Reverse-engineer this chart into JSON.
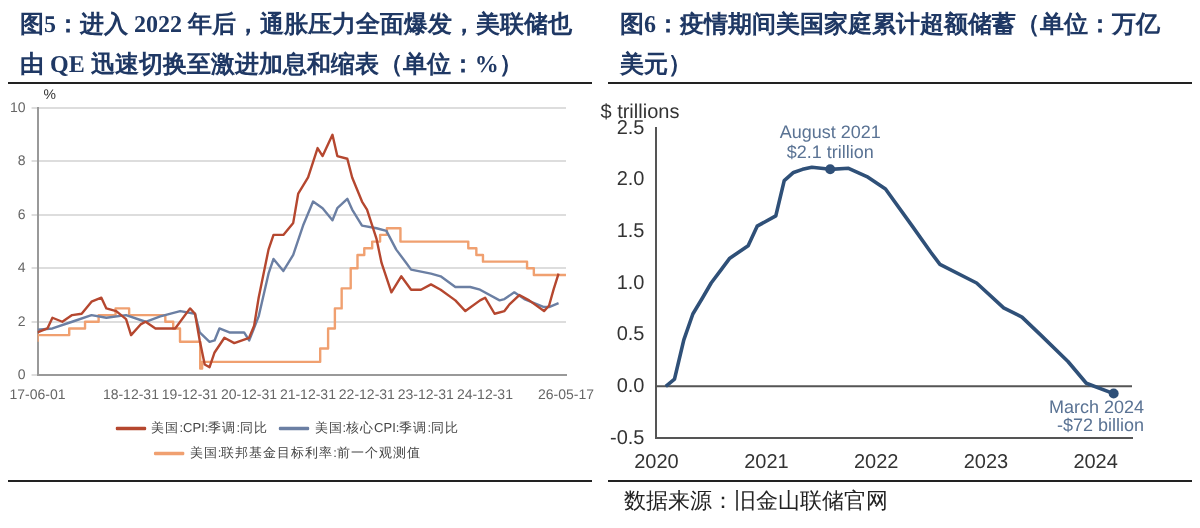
{
  "chart_data": [
    {
      "type": "line",
      "title": "图5：进入 2022 年后，通胀压力全面爆发，美联储也由 QE 迅速切换至激进加息和缩表（单位：%）",
      "ylabel": "%",
      "xlim": [
        "2017-06-01",
        "2026-05-17"
      ],
      "xticks": [
        {
          "value": "2017-06-01",
          "label": "17-06-01"
        },
        {
          "value": "2018-12-31",
          "label": "18-12-31"
        },
        {
          "value": "2019-12-31",
          "label": "19-12-31"
        },
        {
          "value": "2020-12-31",
          "label": "20-12-31"
        },
        {
          "value": "2021-12-31",
          "label": "21-12-31"
        },
        {
          "value": "2022-12-31",
          "label": "22-12-31"
        },
        {
          "value": "2023-12-31",
          "label": "23-12-31"
        },
        {
          "value": "2024-12-31",
          "label": "24-12-31"
        },
        {
          "value": "2026-05-17",
          "label": "26-05-17"
        }
      ],
      "ylim": [
        0,
        10
      ],
      "yticks": [
        0,
        2,
        4,
        6,
        8,
        10
      ],
      "grid": "y",
      "legend": "bottom",
      "marker": "none",
      "line_style": "solid",
      "series": [
        {
          "name": "美国:CPI:季调:同比",
          "color": "#b5472f",
          "x": [
            "2017-06",
            "2017-08",
            "2017-09",
            "2017-11",
            "2018-01",
            "2018-03",
            "2018-05",
            "2018-07",
            "2018-08",
            "2018-10",
            "2018-12",
            "2019-01",
            "2019-03",
            "2019-04",
            "2019-06",
            "2019-08",
            "2019-10",
            "2020-01",
            "2020-02",
            "2020-03",
            "2020-04",
            "2020-05",
            "2020-06",
            "2020-08",
            "2020-10",
            "2021-01",
            "2021-02",
            "2021-03",
            "2021-05",
            "2021-06",
            "2021-08",
            "2021-10",
            "2021-11",
            "2022-01",
            "2022-03",
            "2022-04",
            "2022-06",
            "2022-07",
            "2022-09",
            "2022-10",
            "2022-12",
            "2023-01",
            "2023-03",
            "2023-04",
            "2023-06",
            "2023-08",
            "2023-10",
            "2023-12",
            "2024-02",
            "2024-04",
            "2024-07",
            "2024-09",
            "2024-12",
            "2025-01",
            "2025-03",
            "2025-05",
            "2025-06",
            "2025-08",
            "2025-10",
            "2026-01",
            "2026-02",
            "2026-03",
            "2026-04"
          ],
          "values": [
            1.6,
            1.75,
            2.15,
            2.0,
            2.25,
            2.3,
            2.75,
            2.9,
            2.5,
            2.4,
            2.1,
            1.5,
            1.9,
            2.0,
            1.75,
            1.75,
            1.75,
            2.5,
            2.3,
            1.3,
            0.4,
            0.3,
            0.85,
            1.4,
            1.2,
            1.4,
            1.85,
            2.9,
            4.7,
            5.25,
            5.25,
            5.7,
            6.8,
            7.4,
            8.5,
            8.2,
            9.0,
            8.2,
            8.1,
            7.4,
            6.5,
            6.2,
            5.1,
            4.2,
            3.1,
            3.7,
            3.2,
            3.2,
            3.4,
            3.2,
            2.8,
            2.4,
            2.8,
            2.9,
            2.3,
            2.4,
            2.65,
            3.0,
            2.8,
            2.4,
            2.6,
            3.2,
            3.8
          ]
        },
        {
          "name": "美国:核心CPI:季调:同比",
          "color": "#6b7fa3",
          "x": [
            "2017-06",
            "2017-09",
            "2018-01",
            "2018-05",
            "2018-08",
            "2018-12",
            "2019-04",
            "2019-07",
            "2019-11",
            "2020-02",
            "2020-03",
            "2020-05",
            "2020-06",
            "2020-07",
            "2020-09",
            "2020-12",
            "2021-01",
            "2021-03",
            "2021-05",
            "2021-06",
            "2021-08",
            "2021-10",
            "2021-12",
            "2022-02",
            "2022-04",
            "2022-06",
            "2022-07",
            "2022-09",
            "2022-10",
            "2022-12",
            "2023-03",
            "2023-05",
            "2023-07",
            "2023-09",
            "2023-10",
            "2024-02",
            "2024-04",
            "2024-07",
            "2024-10",
            "2024-12",
            "2025-04",
            "2025-05",
            "2025-07",
            "2025-09",
            "2026-01",
            "2026-02",
            "2026-04"
          ],
          "values": [
            1.7,
            1.75,
            2.0,
            2.25,
            2.15,
            2.25,
            2.0,
            2.2,
            2.4,
            2.3,
            1.6,
            1.25,
            1.3,
            1.75,
            1.6,
            1.6,
            1.3,
            2.2,
            3.8,
            4.35,
            3.9,
            4.5,
            5.6,
            6.5,
            6.25,
            5.8,
            6.25,
            6.6,
            6.2,
            5.6,
            5.5,
            5.4,
            4.7,
            4.2,
            3.95,
            3.8,
            3.7,
            3.3,
            3.3,
            3.2,
            2.8,
            2.85,
            3.1,
            2.85,
            2.55,
            2.55,
            2.7
          ]
        },
        {
          "name": "美国:联邦基金目标利率:前一个观测值",
          "type": "step",
          "color": "#f0a070",
          "x": [
            "2017-06-01",
            "2017-12-14",
            "2018-03-22",
            "2018-06-14",
            "2018-09-27",
            "2018-12-20",
            "2019-08-01",
            "2019-09-19",
            "2019-10-31",
            "2020-03-04",
            "2020-03-16",
            "2022-03-17",
            "2022-05-05",
            "2022-06-16",
            "2022-07-28",
            "2022-09-22",
            "2022-11-03",
            "2022-12-15",
            "2023-02-02",
            "2023-03-23",
            "2023-05-04",
            "2023-07-27",
            "2024-09-19",
            "2024-11-08",
            "2024-12-19",
            "2025-09-18",
            "2025-10-30",
            "2025-12-11",
            "2026-05-17"
          ],
          "values": [
            1.25,
            1.5,
            1.75,
            2.0,
            2.25,
            2.5,
            2.25,
            2.0,
            1.75,
            1.25,
            0.25,
            0.5,
            1.0,
            1.75,
            2.5,
            3.25,
            4.0,
            4.5,
            4.75,
            5.0,
            5.25,
            5.5,
            5.0,
            4.75,
            4.5,
            4.25,
            4.0,
            3.75,
            3.75
          ]
        }
      ]
    },
    {
      "type": "line",
      "title": "图6：疫情期间美国家庭累计超额储蓄（单位：万亿美元）",
      "ylabel": "$ trillions",
      "xlim": [
        "2020-01",
        "2024-05"
      ],
      "xticks": [
        "2020",
        "2021",
        "2022",
        "2023",
        "2024"
      ],
      "ylim": [
        -0.5,
        2.5
      ],
      "yticks": [
        {
          "value": -0.5,
          "label": "-0.5"
        },
        {
          "value": 0,
          "label": "0.0"
        },
        {
          "value": 0.5,
          "label": "0.5"
        },
        {
          "value": 1,
          "label": "1.0"
        },
        {
          "value": 1.5,
          "label": "1.5"
        },
        {
          "value": 2,
          "label": "2.0"
        },
        {
          "value": 2.5,
          "label": "2.5"
        }
      ],
      "grid": false,
      "legend": false,
      "ref_lines": [
        {
          "axis": "y",
          "value": 0,
          "color": "#555555"
        }
      ],
      "marker": "none",
      "line_style": "solid",
      "series": [
        {
          "color": "#2f5078",
          "x": [
            "2020-02",
            "2020-03",
            "2020-04",
            "2020-05",
            "2020-06",
            "2020-07",
            "2020-08",
            "2020-09",
            "2020-11",
            "2020-12",
            "2021-02",
            "2021-03",
            "2021-04",
            "2021-05",
            "2021-06",
            "2021-08",
            "2021-10",
            "2021-12",
            "2022-02",
            "2022-05",
            "2022-07",
            "2022-08",
            "2022-12",
            "2023-03",
            "2023-05",
            "2023-07",
            "2023-10",
            "2023-12",
            "2024-03"
          ],
          "values": [
            0,
            0.07,
            0.45,
            0.7,
            0.85,
            1.0,
            1.12,
            1.24,
            1.36,
            1.55,
            1.65,
            1.99,
            2.07,
            2.1,
            2.12,
            2.1,
            2.11,
            2.03,
            1.91,
            1.55,
            1.3,
            1.18,
            1.0,
            0.76,
            0.67,
            0.5,
            0.24,
            0.03,
            -0.07
          ]
        }
      ],
      "annotations": [
        {
          "text": "August 2021\n$2.1 trillion",
          "x": "2021-08",
          "y": 2.1
        },
        {
          "text": "March 2024\n-$72 billion",
          "x": "2024-03",
          "y": -0.07
        },
        "数据来源：旧金山联储官网"
      ]
    }
  ]
}
